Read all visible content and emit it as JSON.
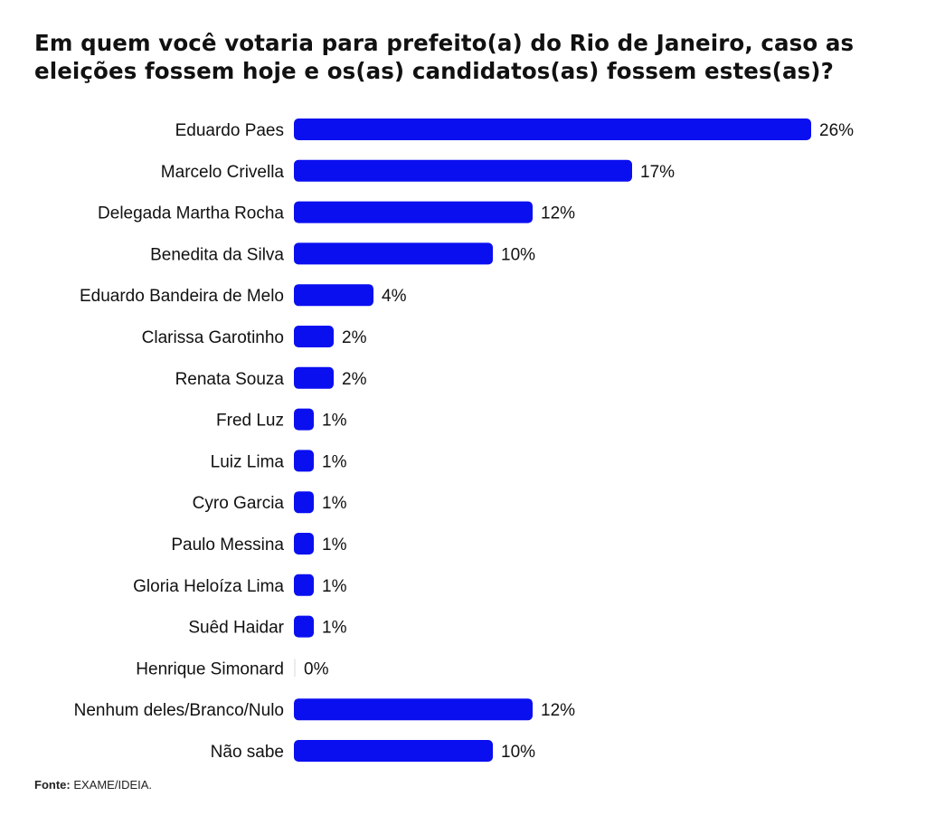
{
  "chart_data": {
    "type": "bar",
    "orientation": "horizontal",
    "title": "Em quem você votaria para prefeito(a) do Rio de Janeiro, caso as eleições fossem hoje e os(as) candidatos(as) fossem estes(as)?",
    "categories": [
      "Eduardo Paes",
      "Marcelo Crivella",
      "Delegada Martha Rocha",
      "Benedita da Silva",
      "Eduardo Bandeira de Melo",
      "Clarissa Garotinho",
      "Renata Souza",
      "Fred Luz",
      "Luiz Lima",
      "Cyro Garcia",
      "Paulo Messina",
      "Gloria Heloíza Lima",
      "Suêd Haidar",
      "Henrique Simonard",
      "Nenhum deles/Branco/Nulo",
      "Não sabe"
    ],
    "values": [
      26,
      17,
      12,
      10,
      4,
      2,
      2,
      1,
      1,
      1,
      1,
      1,
      1,
      0,
      12,
      10
    ],
    "value_labels": [
      "26%",
      "17%",
      "12%",
      "10%",
      "4%",
      "2%",
      "2%",
      "1%",
      "1%",
      "1%",
      "1%",
      "1%",
      "1%",
      "0%",
      "12%",
      "10%"
    ],
    "unit": "%",
    "xlim": [
      0,
      26
    ],
    "bar_color": "#0a0ff0",
    "grid": false,
    "legend": "none"
  },
  "source": {
    "label": "Fonte:",
    "text": "EXAME/IDEIA."
  }
}
